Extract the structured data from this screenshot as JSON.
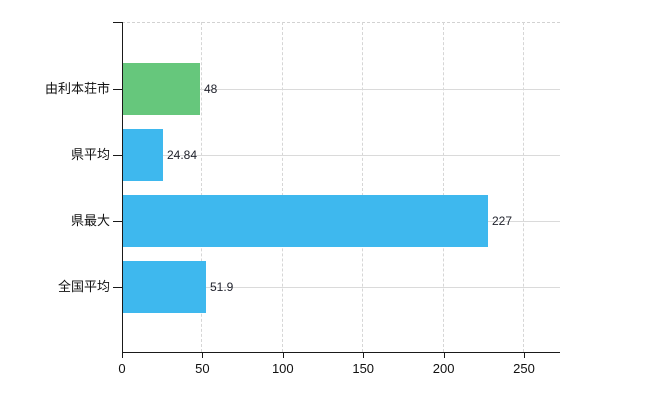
{
  "chart_data": {
    "type": "bar",
    "orientation": "horizontal",
    "title": "",
    "xlabel": "",
    "ylabel": "",
    "categories": [
      "由利本荘市",
      "県平均",
      "県最大",
      "全国平均"
    ],
    "values": [
      48,
      24.84,
      227,
      51.9
    ],
    "value_labels": [
      "48",
      "24.84",
      "227",
      "51.9"
    ],
    "bar_colors": [
      "#66c77c",
      "#3eb8ee",
      "#3eb8ee",
      "#3eb8ee"
    ],
    "xlim": [
      0,
      250
    ],
    "x_ticks": [
      0,
      50,
      100,
      150,
      200,
      250
    ],
    "x_tick_labels": [
      "0",
      "50",
      "100",
      "150",
      "200",
      "250"
    ],
    "grid": true,
    "legend": null
  },
  "colors": {
    "background": "#ffffff",
    "axis": "#1a1a1a",
    "gridline": "#d6d6d6",
    "label_text": "#111111",
    "value_text": "#22242e",
    "bar_green": "#66c77c",
    "bar_blue": "#3eb8ee"
  }
}
